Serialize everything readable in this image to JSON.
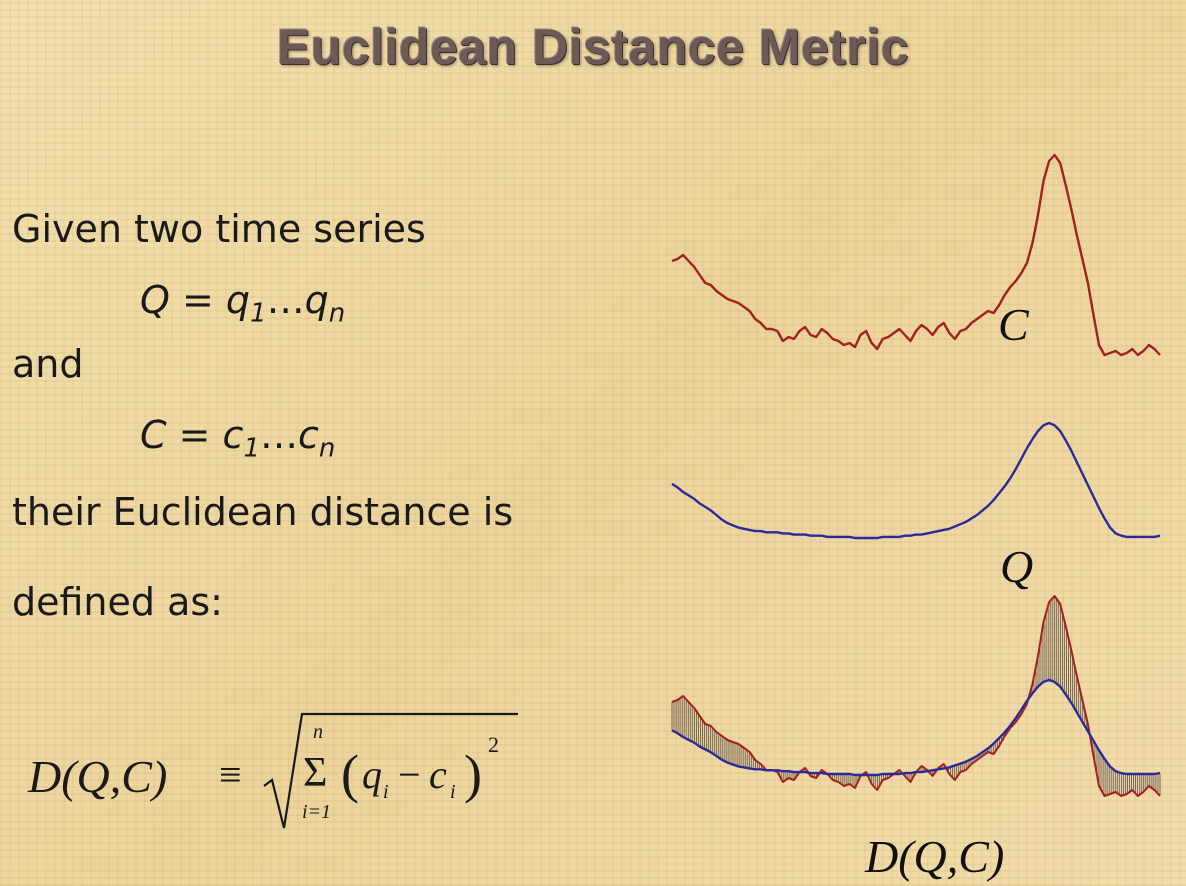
{
  "title": "Euclidean Distance Metric",
  "text": {
    "line1": "Given two time series",
    "q_seq": {
      "lhs": "Q",
      "eq": " = ",
      "v1": "q",
      "s1": "1",
      "dots": "…",
      "v2": "q",
      "s2": "n"
    },
    "and": "and",
    "c_seq": {
      "lhs": "C",
      "eq": " = ",
      "v1": "c",
      "s1": "1",
      "dots": "…",
      "v2": "c",
      "s2": "n"
    },
    "line3": "their Euclidean distance is",
    "line4": "defined as:"
  },
  "formula": {
    "lhs": "D(Q,C)",
    "equiv": "≡",
    "sum_top": "n",
    "sum_sym": "Σ",
    "sum_bottom": "i=1",
    "term_q": "q",
    "term_c": "c",
    "idx": "i",
    "minus": "−",
    "exp": "2"
  },
  "labels": {
    "series_c": "C",
    "series_q": "Q",
    "distance": "D(Q,C)"
  },
  "colors": {
    "series_c": "#a32121",
    "series_q": "#2a2a9a",
    "hatch": "#6a5a50",
    "title": "#6b5a55"
  },
  "series_values": {
    "C": [
      0.47,
      0.48,
      0.5,
      0.47,
      0.44,
      0.4,
      0.36,
      0.35,
      0.32,
      0.3,
      0.28,
      0.27,
      0.26,
      0.24,
      0.22,
      0.18,
      0.16,
      0.13,
      0.13,
      0.12,
      0.07,
      0.09,
      0.08,
      0.12,
      0.14,
      0.1,
      0.09,
      0.13,
      0.11,
      0.08,
      0.07,
      0.05,
      0.06,
      0.04,
      0.1,
      0.12,
      0.06,
      0.03,
      0.08,
      0.09,
      0.11,
      0.13,
      0.1,
      0.07,
      0.12,
      0.15,
      0.13,
      0.1,
      0.14,
      0.16,
      0.11,
      0.08,
      0.12,
      0.13,
      0.16,
      0.18,
      0.2,
      0.22,
      0.21,
      0.25,
      0.3,
      0.34,
      0.37,
      0.41,
      0.46,
      0.56,
      0.7,
      0.87,
      0.97,
      1.0,
      0.96,
      0.85,
      0.73,
      0.6,
      0.48,
      0.36,
      0.2,
      0.05,
      0.0,
      0.01,
      0.02,
      0.0,
      0.01,
      0.03,
      0.0,
      0.02,
      0.05,
      0.03,
      0.0
    ],
    "Q": [
      0.47,
      0.44,
      0.4,
      0.37,
      0.34,
      0.3,
      0.27,
      0.24,
      0.2,
      0.16,
      0.13,
      0.11,
      0.09,
      0.08,
      0.07,
      0.06,
      0.06,
      0.05,
      0.05,
      0.05,
      0.04,
      0.04,
      0.03,
      0.03,
      0.03,
      0.02,
      0.02,
      0.02,
      0.01,
      0.01,
      0.01,
      0.01,
      0.01,
      0.0,
      0.0,
      0.0,
      0.0,
      0.0,
      0.01,
      0.01,
      0.01,
      0.01,
      0.02,
      0.02,
      0.03,
      0.03,
      0.04,
      0.05,
      0.06,
      0.07,
      0.08,
      0.1,
      0.12,
      0.14,
      0.17,
      0.2,
      0.24,
      0.28,
      0.33,
      0.39,
      0.45,
      0.52,
      0.6,
      0.69,
      0.78,
      0.86,
      0.93,
      0.98,
      1.0,
      0.98,
      0.93,
      0.85,
      0.76,
      0.66,
      0.56,
      0.46,
      0.36,
      0.26,
      0.17,
      0.09,
      0.04,
      0.02,
      0.01,
      0.01,
      0.01,
      0.01,
      0.01,
      0.01,
      0.02
    ]
  }
}
